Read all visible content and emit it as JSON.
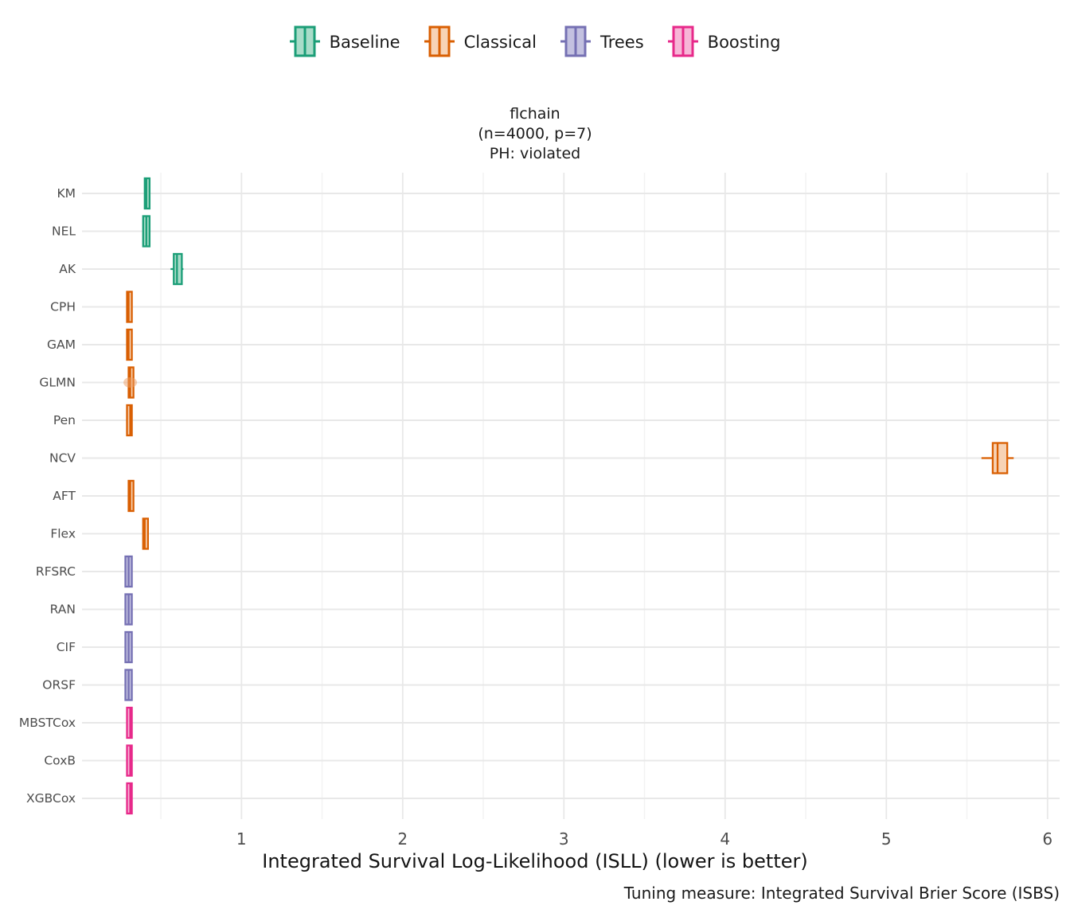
{
  "legend": {
    "items": [
      {
        "label": "Baseline",
        "color": "#1b9e77",
        "fill": "#a9dcc9"
      },
      {
        "label": "Classical",
        "color": "#d95f02",
        "fill": "#f7d3b5"
      },
      {
        "label": "Trees",
        "color": "#7570b3",
        "fill": "#c3c1e0"
      },
      {
        "label": "Boosting",
        "color": "#e7298a",
        "fill": "#f7b6d7"
      }
    ]
  },
  "title": {
    "line1": "flchain",
    "line2": "(n=4000, p=7)",
    "line3": "PH: violated"
  },
  "axis": {
    "x_label": "Integrated Survival Log-Likelihood (ISLL) (lower is better)"
  },
  "caption": {
    "text": "Tuning measure: Integrated Survival Brier Score (ISBS)"
  },
  "chart_data": {
    "type": "boxplot",
    "orientation": "horizontal",
    "title": "flchain (n=4000, p=7) PH: violated",
    "xlabel": "Integrated Survival Log-Likelihood (ISLL) (lower is better)",
    "caption": "Tuning measure: Integrated Survival Brier Score (ISBS)",
    "xlim": [
      0,
      6.08
    ],
    "x_ticks": [
      1,
      2,
      3,
      4,
      5,
      6
    ],
    "x_minor_ticks": [
      0.5,
      1.5,
      2.5,
      3.5,
      4.5,
      5.5
    ],
    "grid": "on",
    "legend_position": "top",
    "groups": [
      {
        "name": "Baseline",
        "color": "#1b9e77",
        "fill": "#a9dcc9"
      },
      {
        "name": "Classical",
        "color": "#d95f02",
        "fill": "#f7d3b5"
      },
      {
        "name": "Trees",
        "color": "#7570b3",
        "fill": "#c3c1e0"
      },
      {
        "name": "Boosting",
        "color": "#e7298a",
        "fill": "#f7b6d7"
      }
    ],
    "models": [
      {
        "label": "KM",
        "group": "Baseline",
        "whislo": 0.4,
        "q1": 0.4,
        "med": 0.41,
        "q3": 0.43,
        "whishi": 0.43,
        "outliers": []
      },
      {
        "label": "NEL",
        "group": "Baseline",
        "whislo": 0.39,
        "q1": 0.39,
        "med": 0.41,
        "q3": 0.43,
        "whishi": 0.43,
        "outliers": []
      },
      {
        "label": "AK",
        "group": "Baseline",
        "whislo": 0.56,
        "q1": 0.58,
        "med": 0.6,
        "q3": 0.63,
        "whishi": 0.64,
        "outliers": []
      },
      {
        "label": "CPH",
        "group": "Classical",
        "whislo": 0.29,
        "q1": 0.29,
        "med": 0.3,
        "q3": 0.32,
        "whishi": 0.32,
        "outliers": []
      },
      {
        "label": "GAM",
        "group": "Classical",
        "whislo": 0.29,
        "q1": 0.29,
        "med": 0.3,
        "q3": 0.32,
        "whishi": 0.32,
        "outliers": []
      },
      {
        "label": "GLMN",
        "group": "Classical",
        "whislo": 0.3,
        "q1": 0.3,
        "med": 0.31,
        "q3": 0.33,
        "whishi": 0.33,
        "outliers": [
          0.31
        ]
      },
      {
        "label": "Pen",
        "group": "Classical",
        "whislo": 0.29,
        "q1": 0.29,
        "med": 0.31,
        "q3": 0.32,
        "whishi": 0.32,
        "outliers": []
      },
      {
        "label": "NCV",
        "group": "Classical",
        "whislo": 5.59,
        "q1": 5.66,
        "med": 5.69,
        "q3": 5.75,
        "whishi": 5.79,
        "outliers": []
      },
      {
        "label": "AFT",
        "group": "Classical",
        "whislo": 0.3,
        "q1": 0.3,
        "med": 0.31,
        "q3": 0.33,
        "whishi": 0.33,
        "outliers": []
      },
      {
        "label": "Flex",
        "group": "Classical",
        "whislo": 0.39,
        "q1": 0.39,
        "med": 0.4,
        "q3": 0.42,
        "whishi": 0.42,
        "outliers": []
      },
      {
        "label": "RFSRC",
        "group": "Trees",
        "whislo": 0.28,
        "q1": 0.28,
        "med": 0.3,
        "q3": 0.32,
        "whishi": 0.32,
        "outliers": []
      },
      {
        "label": "RAN",
        "group": "Trees",
        "whislo": 0.28,
        "q1": 0.28,
        "med": 0.3,
        "q3": 0.32,
        "whishi": 0.32,
        "outliers": []
      },
      {
        "label": "CIF",
        "group": "Trees",
        "whislo": 0.28,
        "q1": 0.28,
        "med": 0.3,
        "q3": 0.32,
        "whishi": 0.32,
        "outliers": []
      },
      {
        "label": "ORSF",
        "group": "Trees",
        "whislo": 0.28,
        "q1": 0.28,
        "med": 0.3,
        "q3": 0.32,
        "whishi": 0.32,
        "outliers": []
      },
      {
        "label": "MBSTCox",
        "group": "Boosting",
        "whislo": 0.29,
        "q1": 0.29,
        "med": 0.31,
        "q3": 0.32,
        "whishi": 0.32,
        "outliers": []
      },
      {
        "label": "CoxB",
        "group": "Boosting",
        "whislo": 0.29,
        "q1": 0.29,
        "med": 0.31,
        "q3": 0.32,
        "whishi": 0.32,
        "outliers": []
      },
      {
        "label": "XGBCox",
        "group": "Boosting",
        "whislo": 0.29,
        "q1": 0.29,
        "med": 0.31,
        "q3": 0.32,
        "whishi": 0.32,
        "outliers": []
      }
    ],
    "outlier_style": {
      "color": "#ed9d63",
      "opacity": 0.5
    }
  }
}
